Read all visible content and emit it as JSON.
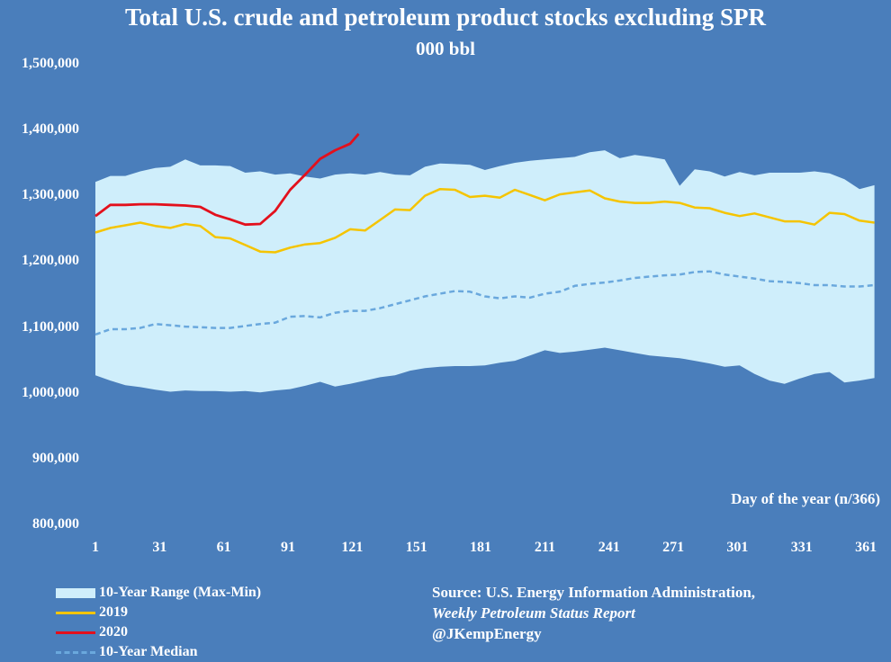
{
  "colors": {
    "background": "#4a7ebb",
    "range": "#cfeefb",
    "y2019": "#f5c400",
    "y2020": "#e3101c",
    "median": "#6aa8dd"
  },
  "chart_data": {
    "type": "line",
    "title": "Total U.S. crude and petroleum product stocks excluding SPR",
    "subtitle": "000 bbl",
    "xlabel": "Day of the year (n/366)",
    "ylabel": "",
    "xlim": [
      1,
      366
    ],
    "ylim": [
      800000,
      1500000
    ],
    "xticks": [
      1,
      31,
      61,
      91,
      121,
      151,
      181,
      211,
      241,
      271,
      301,
      331,
      361
    ],
    "yticks": [
      800000,
      900000,
      1000000,
      1100000,
      1200000,
      1300000,
      1400000,
      1500000
    ],
    "ytick_labels": [
      "800,000",
      "900,000",
      "1,000,000",
      "1,100,000",
      "1,200,000",
      "1,300,000",
      "1,400,000",
      "1,500,000"
    ],
    "legend": [
      "10-Year Range (Max-Min)",
      "2019",
      "2020",
      "10-Year Median"
    ],
    "legend_position": "bottom-left",
    "source_lines": [
      "Source: U.S. Energy Information Administration,",
      "Weekly Petroleum Status Report",
      "@JKemp­Energy"
    ],
    "range": {
      "name": "10-Year Range (Max-Min)",
      "x": [
        1,
        8,
        15,
        22,
        29,
        36,
        43,
        50,
        57,
        64,
        71,
        78,
        85,
        92,
        99,
        106,
        113,
        120,
        127,
        134,
        141,
        148,
        155,
        162,
        169,
        176,
        183,
        190,
        197,
        204,
        211,
        218,
        225,
        232,
        239,
        246,
        253,
        260,
        267,
        274,
        281,
        288,
        295,
        302,
        309,
        316,
        323,
        330,
        337,
        344,
        351,
        358,
        365
      ],
      "max": [
        1322000,
        1331000,
        1331000,
        1338000,
        1343000,
        1345000,
        1356000,
        1347000,
        1347000,
        1346000,
        1336000,
        1338000,
        1333000,
        1335000,
        1330000,
        1327000,
        1333000,
        1335000,
        1333000,
        1337000,
        1333000,
        1332000,
        1345000,
        1350000,
        1349000,
        1348000,
        1340000,
        1346000,
        1351000,
        1354000,
        1356000,
        1358000,
        1360000,
        1367000,
        1370000,
        1358000,
        1363000,
        1360000,
        1356000,
        1316000,
        1341000,
        1338000,
        1330000,
        1337000,
        1332000,
        1336000,
        1336000,
        1336000,
        1338000,
        1335000,
        1326000,
        1311000,
        1317000
      ],
      "min": [
        1028000,
        1020000,
        1013000,
        1010000,
        1006000,
        1003000,
        1005000,
        1004000,
        1004000,
        1003000,
        1004000,
        1002000,
        1005000,
        1007000,
        1012000,
        1018000,
        1011000,
        1015000,
        1020000,
        1025000,
        1028000,
        1035000,
        1039000,
        1041000,
        1042000,
        1042000,
        1043000,
        1047000,
        1050000,
        1058000,
        1066000,
        1062000,
        1064000,
        1067000,
        1070000,
        1066000,
        1062000,
        1058000,
        1056000,
        1054000,
        1050000,
        1046000,
        1041000,
        1043000,
        1030000,
        1020000,
        1015000,
        1023000,
        1030000,
        1033000,
        1017000,
        1020000,
        1024000
      ]
    },
    "series": [
      {
        "name": "2019",
        "x": [
          1,
          8,
          15,
          22,
          29,
          36,
          43,
          50,
          57,
          64,
          71,
          78,
          85,
          92,
          99,
          106,
          113,
          120,
          127,
          134,
          141,
          148,
          155,
          162,
          169,
          176,
          183,
          190,
          197,
          204,
          211,
          218,
          225,
          232,
          239,
          246,
          253,
          260,
          267,
          274,
          281,
          288,
          295,
          302,
          309,
          316,
          323,
          330,
          337,
          344,
          351,
          358,
          365
        ],
        "values": [
          1245000,
          1252000,
          1256000,
          1260000,
          1255000,
          1252000,
          1258000,
          1255000,
          1238000,
          1236000,
          1226000,
          1216000,
          1215000,
          1222000,
          1227000,
          1229000,
          1237000,
          1250000,
          1248000,
          1264000,
          1280000,
          1279000,
          1301000,
          1311000,
          1310000,
          1299000,
          1301000,
          1298000,
          1310000,
          1302000,
          1294000,
          1303000,
          1306000,
          1309000,
          1297000,
          1292000,
          1290000,
          1290000,
          1292000,
          1290000,
          1283000,
          1282000,
          1275000,
          1270000,
          1274000,
          1268000,
          1262000,
          1262000,
          1257000,
          1275000,
          1273000,
          1263000,
          1260000
        ]
      },
      {
        "name": "2020",
        "x": [
          1,
          8,
          15,
          22,
          29,
          36,
          43,
          50,
          57,
          64,
          71,
          78,
          85,
          92,
          99,
          106,
          113,
          120,
          124
        ],
        "values": [
          1270000,
          1287000,
          1287000,
          1288000,
          1288000,
          1287000,
          1286000,
          1284000,
          1272000,
          1265000,
          1257000,
          1258000,
          1278000,
          1310000,
          1333000,
          1357000,
          1370000,
          1380000,
          1395000
        ]
      },
      {
        "name": "10-Year Median",
        "x": [
          1,
          8,
          15,
          22,
          29,
          36,
          43,
          50,
          57,
          64,
          71,
          78,
          85,
          92,
          99,
          106,
          113,
          120,
          127,
          134,
          141,
          148,
          155,
          162,
          169,
          176,
          183,
          190,
          197,
          204,
          211,
          218,
          225,
          232,
          239,
          246,
          253,
          260,
          267,
          274,
          281,
          288,
          295,
          302,
          309,
          316,
          323,
          330,
          337,
          344,
          351,
          358,
          365
        ],
        "values": [
          1090000,
          1098000,
          1098000,
          1100000,
          1106000,
          1104000,
          1102000,
          1101000,
          1100000,
          1100000,
          1103000,
          1106000,
          1108000,
          1117000,
          1118000,
          1116000,
          1123000,
          1126000,
          1126000,
          1130000,
          1136000,
          1142000,
          1148000,
          1152000,
          1156000,
          1155000,
          1148000,
          1145000,
          1148000,
          1146000,
          1152000,
          1155000,
          1164000,
          1167000,
          1169000,
          1172000,
          1176000,
          1178000,
          1180000,
          1181000,
          1185000,
          1186000,
          1181000,
          1178000,
          1175000,
          1171000,
          1170000,
          1168000,
          1165000,
          1165000,
          1163000,
          1163000,
          1165000
        ]
      }
    ]
  }
}
